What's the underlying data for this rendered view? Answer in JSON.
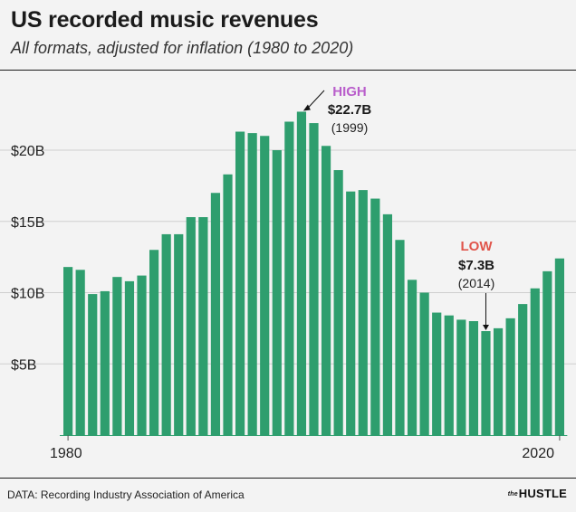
{
  "header": {
    "title": "US recorded music revenues",
    "subtitle": "All formats, adjusted for inflation (1980 to 2020)"
  },
  "footer": {
    "source": "DATA: Recording Industry Association of America",
    "brand_prefix": "the",
    "brand_name": "HUSTLE"
  },
  "colors": {
    "bar": "#2e9e6e",
    "high": "#b95ecb",
    "low": "#e0554b",
    "background": "#f3f3f3"
  },
  "chart_data": {
    "type": "bar",
    "x": [
      1980,
      1981,
      1982,
      1983,
      1984,
      1985,
      1986,
      1987,
      1988,
      1989,
      1990,
      1991,
      1992,
      1993,
      1994,
      1995,
      1996,
      1997,
      1998,
      1999,
      2000,
      2001,
      2002,
      2003,
      2004,
      2005,
      2006,
      2007,
      2008,
      2009,
      2010,
      2011,
      2012,
      2013,
      2014,
      2015,
      2016,
      2017,
      2018,
      2019,
      2020
    ],
    "values": [
      11.8,
      11.6,
      9.9,
      10.1,
      11.1,
      10.8,
      11.2,
      13.0,
      14.1,
      14.1,
      15.3,
      15.3,
      17.0,
      18.3,
      21.3,
      21.2,
      21.0,
      20.0,
      22.0,
      22.7,
      21.9,
      20.3,
      18.6,
      17.1,
      17.2,
      16.6,
      15.5,
      13.7,
      10.9,
      10.0,
      8.6,
      8.4,
      8.1,
      8.0,
      7.3,
      7.5,
      8.2,
      9.2,
      10.3,
      11.5,
      12.4
    ],
    "yticks": [
      {
        "value": 5,
        "label": "$5B"
      },
      {
        "value": 10,
        "label": "$10B"
      },
      {
        "value": 15,
        "label": "$15B"
      },
      {
        "value": 20,
        "label": "$20B"
      }
    ],
    "xtick_labels": [
      {
        "value": 1980,
        "label": "1980"
      },
      {
        "value": 2020,
        "label": "2020"
      }
    ],
    "ylim": [
      0,
      26.5
    ],
    "grid": true,
    "annotations": {
      "high": {
        "x": 1999,
        "value": 22.7,
        "label": "HIGH",
        "amount": "$22.7B",
        "year": "(1999)"
      },
      "low": {
        "x": 2014,
        "value": 7.3,
        "label": "LOW",
        "amount": "$7.3B",
        "year": "(2014)"
      }
    }
  }
}
